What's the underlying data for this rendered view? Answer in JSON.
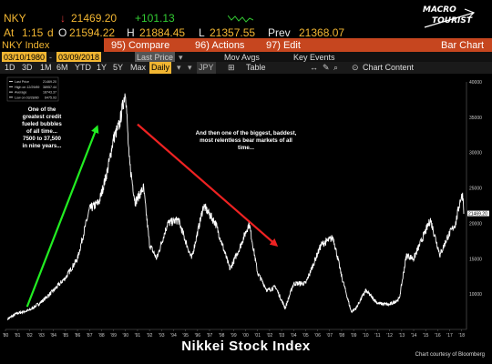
{
  "quote": {
    "ticker": "NKY",
    "last": "21469.20",
    "change": "+101.13",
    "at_label": "At",
    "time": "1:15",
    "exchange": "d",
    "open_label": "O",
    "open": "21594.22",
    "high_label": "H",
    "high": "21884.45",
    "low_label": "L",
    "low": "21357.55",
    "prev_label": "Prev",
    "prev": "21368.07"
  },
  "logo": {
    "line1": "MACRO",
    "line2": "TOURIST"
  },
  "funcbar": {
    "security": "NKY Index",
    "compare_num": "95)",
    "compare": "Compare",
    "actions_num": "96)",
    "actions": "Actions",
    "edit_num": "97)",
    "edit": "Edit",
    "view": "Bar Chart"
  },
  "toolbar": {
    "ranges": [
      "1D",
      "3D",
      "1M",
      "6M",
      "YTD",
      "1Y",
      "5Y",
      "Max"
    ],
    "frequency": "Daily",
    "currency": "JPY",
    "table": "Table",
    "start_date": "03/10/1980",
    "end_date": "03/09/2018",
    "field": "Last Price",
    "mov_avgs": "Mov Avgs",
    "key_events": "Key Events",
    "chart_content": "Chart Content"
  },
  "chart_data": {
    "type": "line",
    "title": "Nikkei Stock Index",
    "source": "Chart courtesy of Bloomberg",
    "xlabel": "",
    "ylabel": "",
    "ylim": [
      5000,
      40000
    ],
    "y_ticks": [
      10000,
      15000,
      20000,
      25000,
      30000,
      35000,
      40000
    ],
    "y_tick_labels": [
      "10000",
      "15000",
      "20000",
      "25000",
      "30000",
      "35000",
      "40000"
    ],
    "x_tick_labels": [
      "'80",
      "'81",
      "'82",
      "'83",
      "'84",
      "'85",
      "'86",
      "'87",
      "'88",
      "'89",
      "'90",
      "'91",
      "'92",
      "'93",
      "'94",
      "'95",
      "'96",
      "'97",
      "'98",
      "'99",
      "'00",
      "'01",
      "'02",
      "'03",
      "'04",
      "'05",
      "'06",
      "'07",
      "'08",
      "'09",
      "'10",
      "'11",
      "'12",
      "'13",
      "'14",
      "'15",
      "'16",
      "'17",
      "'18"
    ],
    "legend": [
      {
        "label": "Last Price",
        "value": ""
      },
      {
        "label": "High on 12/29/89",
        "value": "38957.44"
      },
      {
        "label": "Average",
        "value": "18743.37"
      },
      {
        "label": "Low on 03/28/80",
        "value": "6475.93"
      }
    ],
    "legend_last_value": "21469.20",
    "series": [
      {
        "color": "#ffffff",
        "x": [
          1980.2,
          1981,
          1982,
          1983,
          1984,
          1985,
          1986,
          1987,
          1987.8,
          1988.5,
          1989,
          1989.5,
          1990,
          1990.3,
          1990.8,
          1991.5,
          1992,
          1992.6,
          1993.5,
          1994.4,
          1995.5,
          1996.5,
          1997.5,
          1998.7,
          1999.5,
          2000.3,
          2001,
          2001.8,
          2002.5,
          2003.3,
          2004,
          2005,
          2006.3,
          2007.3,
          2008,
          2008.8,
          2009.2,
          2010,
          2011,
          2012,
          2012.8,
          2013.4,
          2014,
          2015.4,
          2016.2,
          2016.8,
          2017.5,
          2017.9,
          2018.1,
          2018.2
        ],
        "y": [
          6500,
          7300,
          7700,
          8900,
          10500,
          12300,
          15000,
          22000,
          23000,
          27500,
          32000,
          34000,
          38900,
          29000,
          23000,
          25000,
          17000,
          15000,
          20000,
          20500,
          15000,
          22500,
          20000,
          13500,
          16500,
          20000,
          13000,
          10500,
          11000,
          8000,
          11500,
          11500,
          17000,
          18000,
          12500,
          7500,
          8000,
          10500,
          8700,
          8500,
          9300,
          15500,
          15000,
          20500,
          15500,
          18000,
          20000,
          23500,
          24000,
          21400
        ]
      }
    ],
    "annotations": [
      {
        "text": "One of the greatest credit fueled bubbles of all time... 7500 to 37,500 in nine years...",
        "color": "#ffffff"
      },
      {
        "text": "And then one of the biggest, baddest, most relentless bear markets of all time...",
        "color": "#ffffff"
      }
    ],
    "arrows": [
      {
        "color": "#22ee22",
        "from": [
          1981.8,
          8200
        ],
        "to": [
          1987.6,
          33500
        ]
      },
      {
        "color": "#ee2222",
        "from": [
          1991,
          34000
        ],
        "to": [
          2002.5,
          17000
        ]
      }
    ],
    "grid": false,
    "legend_position": "top-left"
  }
}
